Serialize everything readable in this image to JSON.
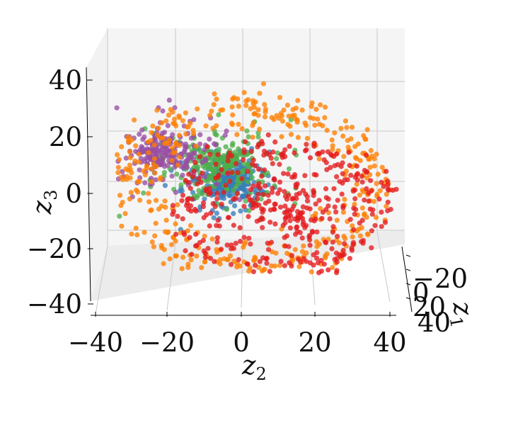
{
  "chart_data": {
    "type": "scatter",
    "projection": "3d",
    "title": "",
    "axes": {
      "z2": {
        "label": "z",
        "label_sub": "2",
        "lim": [
          -40,
          40
        ],
        "ticks": [
          "−40",
          "−20",
          "0",
          "20",
          "40"
        ]
      },
      "z3": {
        "label": "z",
        "label_sub": "3",
        "lim": [
          -40,
          40
        ],
        "ticks": [
          "−40",
          "−20",
          "0",
          "20",
          "40"
        ]
      },
      "z1": {
        "label": "z",
        "label_sub": "1",
        "lim": [
          -40,
          40
        ],
        "ticks": [
          "−20",
          "0",
          "20",
          "40"
        ]
      }
    },
    "grid": true,
    "legend": "none",
    "series": [
      {
        "color": "#377eb8",
        "count": 320,
        "center": [
          -4,
          8
        ],
        "spread": [
          12,
          10
        ]
      },
      {
        "color": "#4daf4a",
        "count": 260,
        "center": [
          -6,
          14
        ],
        "spread": [
          20,
          16
        ]
      },
      {
        "color": "#984ea3",
        "count": 230,
        "center": [
          -22,
          18
        ],
        "spread": [
          16,
          14
        ]
      },
      {
        "color": "#ff7f00",
        "count": 420,
        "center": [
          2,
          6
        ],
        "spread": [
          38,
          32
        ]
      },
      {
        "color": "#e41a1c",
        "count": 430,
        "center": [
          12,
          -2
        ],
        "spread": [
          30,
          24
        ]
      }
    ]
  }
}
